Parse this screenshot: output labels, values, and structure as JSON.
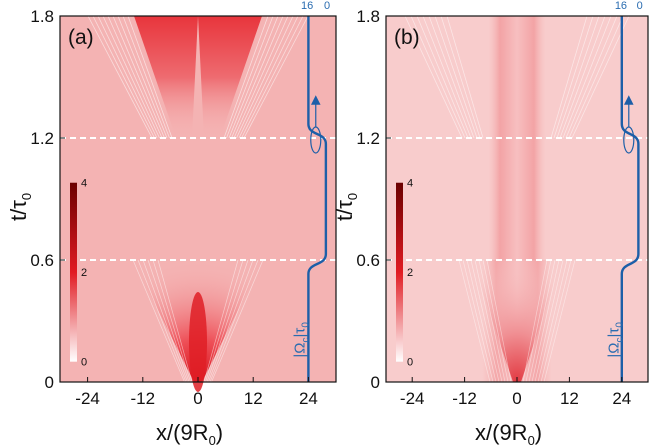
{
  "chart_data": [
    {
      "type": "heatmap",
      "panel_label": "(a)",
      "xlabel": "x/(9R",
      "xlabel_sub": "0",
      "xlabel_close": ")",
      "ylabel": "t/τ",
      "ylabel_sub": "0",
      "xlim": [
        -30,
        30
      ],
      "ylim": [
        0,
        1.8
      ],
      "xticks": [
        "-24",
        "-12",
        "0",
        "12",
        "24"
      ],
      "xtick_values": [
        -24,
        -12,
        0,
        12,
        24
      ],
      "yticks": [
        "0",
        "0.6",
        "1.2",
        "1.8"
      ],
      "ytick_values": [
        0,
        0.6,
        1.2,
        1.8
      ],
      "dashed_lines_t": [
        0.6,
        1.2
      ],
      "colorbar": {
        "labels": [
          "4",
          "2",
          "0"
        ],
        "range": [
          0,
          4
        ]
      },
      "control_label": "|Ω",
      "control_sub": "c",
      "control_label_end": "|τ",
      "control_sub2": "0",
      "control_axis_ticks": [
        "16",
        "0"
      ],
      "control_profile": {
        "t": [
          0,
          0.6,
          1.2,
          1.8
        ],
        "value": "low → high between 0.6 and 1.2"
      }
    },
    {
      "type": "heatmap",
      "panel_label": "(b)",
      "xlabel": "x/(9R",
      "xlabel_sub": "0",
      "xlabel_close": ")",
      "ylabel": "t/τ",
      "ylabel_sub": "0",
      "xlim": [
        -30,
        30
      ],
      "ylim": [
        0,
        1.8
      ],
      "xticks": [
        "-24",
        "-12",
        "0",
        "12",
        "24"
      ],
      "xtick_values": [
        -24,
        -12,
        0,
        12,
        24
      ],
      "yticks": [
        "0",
        "0.6",
        "1.2",
        "1.8"
      ],
      "ytick_values": [
        0,
        0.6,
        1.2,
        1.8
      ],
      "dashed_lines_t": [
        0.6,
        1.2
      ],
      "colorbar": {
        "labels": [
          "4",
          "2",
          "0"
        ],
        "range": [
          0,
          4
        ]
      },
      "control_label": "|Ω",
      "control_sub": "c",
      "control_label_end": "|τ",
      "control_sub2": "0",
      "control_axis_ticks": [
        "16",
        "0"
      ]
    }
  ],
  "colors": {
    "background_a": "#f4b3b3",
    "background_b": "#f8cccc",
    "peak": "#e11b22",
    "dark": "#7a0000",
    "control_curve": "#1d5fa8",
    "dashed": "#ffffff"
  }
}
